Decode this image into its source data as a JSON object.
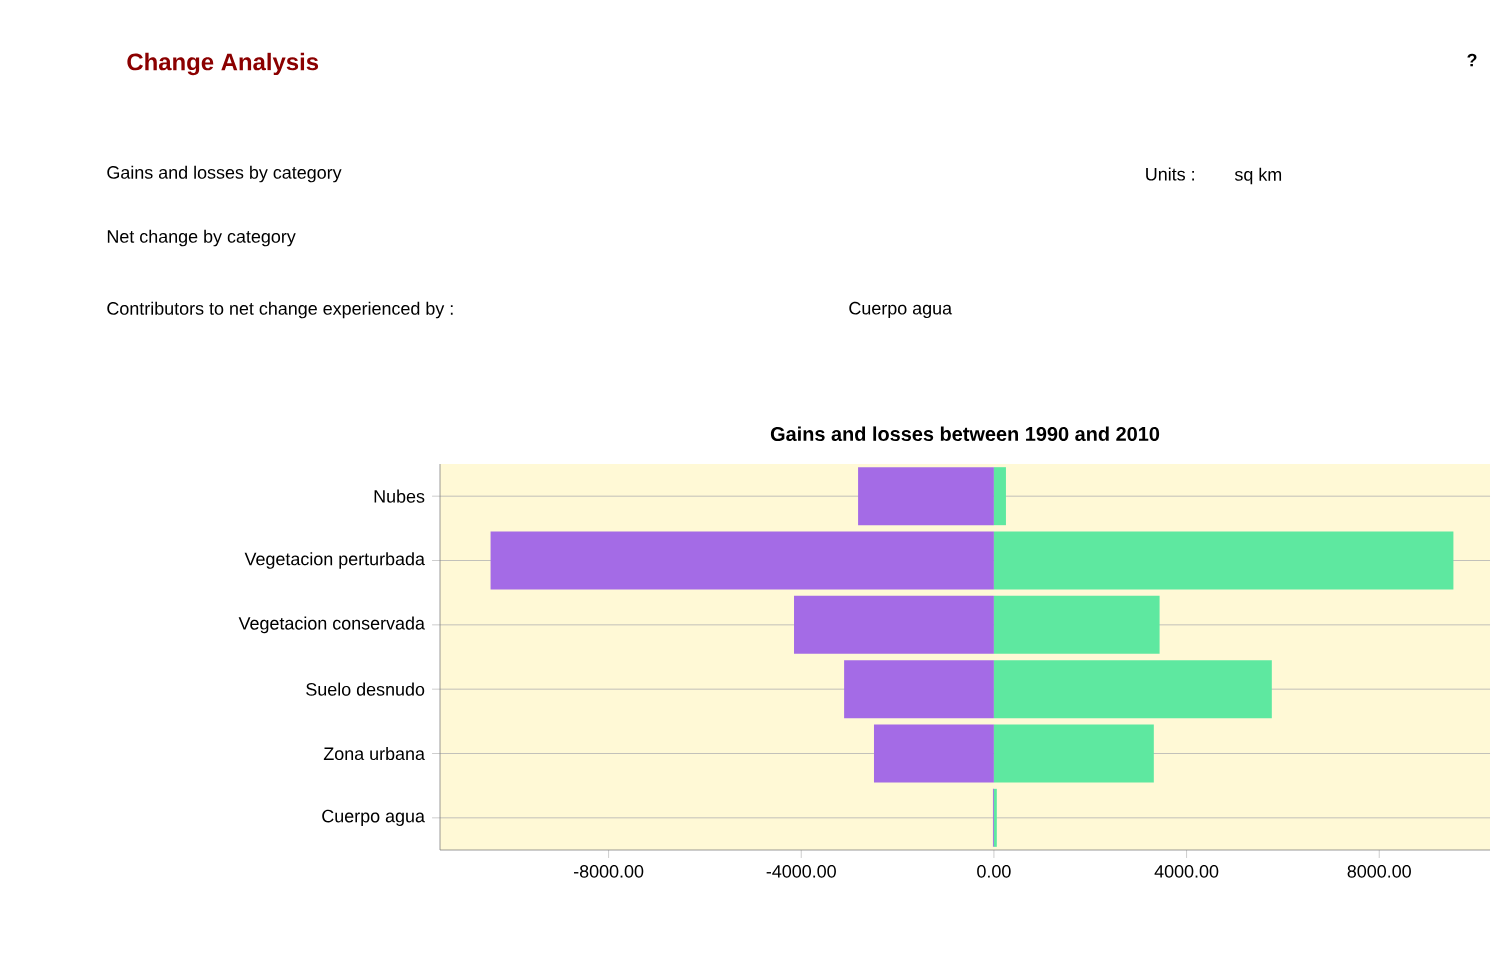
{
  "chart_data": {
    "type": "bar",
    "orientation": "horizontal",
    "stacked": true,
    "title": "Gains and losses between 1990 and 2010",
    "categories": [
      "Nubes",
      "Vegetacion perturbada",
      "Vegetacion conservada",
      "Suelo desnudo",
      "Zona urbana",
      "Cuerpo agua"
    ],
    "series": [
      {
        "color": "#a46be6",
        "values": [
          -2820,
          -10450,
          -4150,
          -3110,
          -2490,
          -20
        ]
      },
      {
        "color": "#5ee8a0",
        "values": [
          250,
          9540,
          3440,
          5770,
          3320,
          60
        ]
      }
    ],
    "xlim": [
      -11500,
      10300
    ],
    "xticks": [
      {
        "value": -8000,
        "label": "-8000.00"
      },
      {
        "value": -4000,
        "label": "-4000.00"
      },
      {
        "value": 0,
        "label": "0.00"
      },
      {
        "value": 4000,
        "label": "4000.00"
      },
      {
        "value": 8000,
        "label": "8000.00"
      }
    ],
    "grid": "y",
    "annotations": [
      "Change Analysis",
      "?",
      "Gains and losses by category",
      "Units :",
      "sq km",
      "Net change by category",
      "Contributors to net change experienced by :",
      "Cuerpo agua"
    ]
  }
}
